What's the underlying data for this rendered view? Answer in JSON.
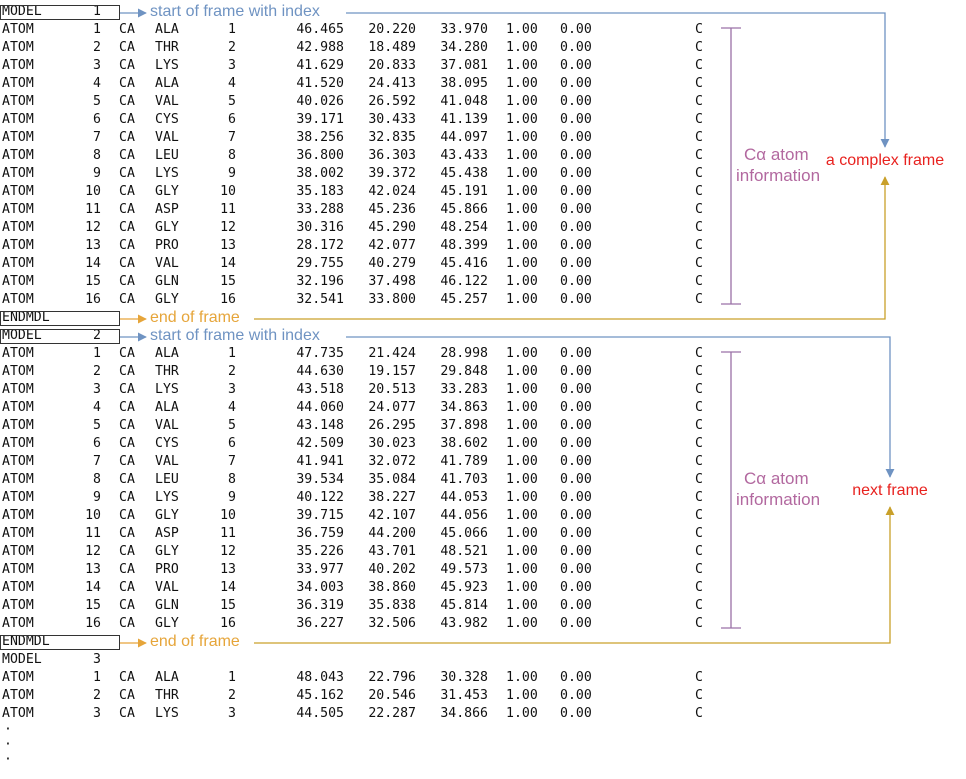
{
  "colors": {
    "start": "#6f93c2",
    "end": "#e6a53a",
    "right_arrow": "#c9a02a",
    "title": "#e8221f",
    "info": "#b2689f",
    "bracket": "#9a71a6",
    "box": "#333333"
  },
  "atom_rows": [
    {
      "serial": "1",
      "name": "CA",
      "res": "ALA",
      "seq": "1"
    },
    {
      "serial": "2",
      "name": "CA",
      "res": "THR",
      "seq": "2"
    },
    {
      "serial": "3",
      "name": "CA",
      "res": "LYS",
      "seq": "3"
    },
    {
      "serial": "4",
      "name": "CA",
      "res": "ALA",
      "seq": "4"
    },
    {
      "serial": "5",
      "name": "CA",
      "res": "VAL",
      "seq": "5"
    },
    {
      "serial": "6",
      "name": "CA",
      "res": "CYS",
      "seq": "6"
    },
    {
      "serial": "7",
      "name": "CA",
      "res": "VAL",
      "seq": "7"
    },
    {
      "serial": "8",
      "name": "CA",
      "res": "LEU",
      "seq": "8"
    },
    {
      "serial": "9",
      "name": "CA",
      "res": "LYS",
      "seq": "9"
    },
    {
      "serial": "10",
      "name": "CA",
      "res": "GLY",
      "seq": "10"
    },
    {
      "serial": "11",
      "name": "CA",
      "res": "ASP",
      "seq": "11"
    },
    {
      "serial": "12",
      "name": "CA",
      "res": "GLY",
      "seq": "12"
    },
    {
      "serial": "13",
      "name": "CA",
      "res": "PRO",
      "seq": "13"
    },
    {
      "serial": "14",
      "name": "CA",
      "res": "VAL",
      "seq": "14"
    },
    {
      "serial": "15",
      "name": "CA",
      "res": "GLN",
      "seq": "15"
    },
    {
      "serial": "16",
      "name": "CA",
      "res": "GLY",
      "seq": "16"
    }
  ],
  "record": {
    "atom": "ATOM",
    "model": "MODEL",
    "endmdl": "ENDMDL",
    "occupancy": "1.00",
    "bfactor": "0.00",
    "element": "C"
  },
  "frames": [
    {
      "model_index": "1",
      "coords": [
        [
          "46.465",
          "20.220",
          "33.970"
        ],
        [
          "42.988",
          "18.489",
          "34.280"
        ],
        [
          "41.629",
          "20.833",
          "37.081"
        ],
        [
          "41.520",
          "24.413",
          "38.095"
        ],
        [
          "40.026",
          "26.592",
          "41.048"
        ],
        [
          "39.171",
          "30.433",
          "41.139"
        ],
        [
          "38.256",
          "32.835",
          "44.097"
        ],
        [
          "36.800",
          "36.303",
          "43.433"
        ],
        [
          "38.002",
          "39.372",
          "45.438"
        ],
        [
          "35.183",
          "42.024",
          "45.191"
        ],
        [
          "33.288",
          "45.236",
          "45.866"
        ],
        [
          "30.316",
          "45.290",
          "48.254"
        ],
        [
          "28.172",
          "42.077",
          "48.399"
        ],
        [
          "29.755",
          "40.279",
          "45.416"
        ],
        [
          "32.196",
          "37.498",
          "46.122"
        ],
        [
          "32.541",
          "33.800",
          "45.257"
        ]
      ],
      "start_label": "start of frame with index",
      "end_label": "end of frame",
      "right_label": "a complex frame",
      "info_label_1": "Cα atom",
      "info_label_2": "information"
    },
    {
      "model_index": "2",
      "coords": [
        [
          "47.735",
          "21.424",
          "28.998"
        ],
        [
          "44.630",
          "19.157",
          "29.848"
        ],
        [
          "43.518",
          "20.513",
          "33.283"
        ],
        [
          "44.060",
          "24.077",
          "34.863"
        ],
        [
          "43.148",
          "26.295",
          "37.898"
        ],
        [
          "42.509",
          "30.023",
          "38.602"
        ],
        [
          "41.941",
          "32.072",
          "41.789"
        ],
        [
          "39.534",
          "35.084",
          "41.703"
        ],
        [
          "40.122",
          "38.227",
          "44.053"
        ],
        [
          "39.715",
          "42.107",
          "44.056"
        ],
        [
          "36.759",
          "44.200",
          "45.066"
        ],
        [
          "35.226",
          "43.701",
          "48.521"
        ],
        [
          "33.977",
          "40.202",
          "49.573"
        ],
        [
          "34.003",
          "38.860",
          "45.923"
        ],
        [
          "36.319",
          "35.838",
          "45.814"
        ],
        [
          "36.227",
          "32.506",
          "43.982"
        ]
      ],
      "start_label": "start of frame with index",
      "end_label": "end of frame",
      "right_label": "next frame",
      "info_label_1": "Cα atom",
      "info_label_2": "information"
    },
    {
      "model_index": "3",
      "coords": [
        [
          "48.043",
          "22.796",
          "30.328"
        ],
        [
          "45.162",
          "20.546",
          "31.453"
        ],
        [
          "44.505",
          "22.287",
          "34.866"
        ]
      ]
    }
  ],
  "ellipsis": [
    "·",
    "·",
    "·"
  ]
}
